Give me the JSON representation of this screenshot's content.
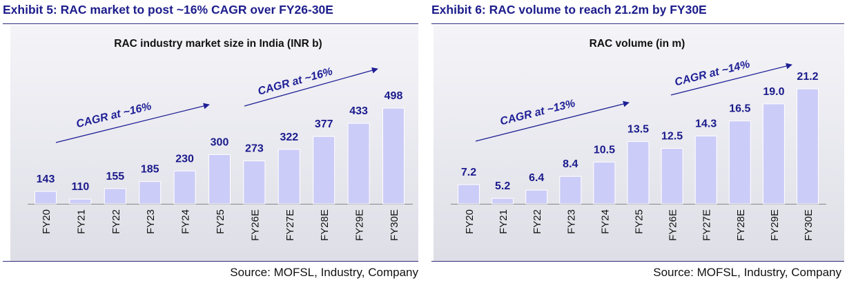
{
  "colors": {
    "bar": "#ccccf8",
    "bar_edge": "#ffffff",
    "value_label": "#1a1a8c",
    "arrow": "#1f1f96",
    "axis": "#888888",
    "title": "#1d1d8c"
  },
  "chart_data": [
    {
      "type": "bar",
      "exhibit_title": "Exhibit 5: RAC market to post ~16% CAGR over FY26-30E",
      "title": "RAC industry market size in India (INR b)",
      "categories": [
        "FY20",
        "FY21",
        "FY22",
        "FY23",
        "FY24",
        "FY25",
        "FY26E",
        "FY27E",
        "FY28E",
        "FY29E",
        "FY30E"
      ],
      "values": [
        143,
        110,
        155,
        185,
        230,
        300,
        273,
        322,
        377,
        433,
        498
      ],
      "value_labels": [
        "143",
        "110",
        "155",
        "185",
        "230",
        "300",
        "273",
        "322",
        "377",
        "433",
        "498"
      ],
      "ylim": [
        90,
        498
      ],
      "annotations": [
        {
          "text": "CAGR at ~16%",
          "from_index": 0,
          "to_index": 5
        },
        {
          "text": "CAGR at ~16%",
          "from_index": 6,
          "to_index": 10
        }
      ],
      "source": "Source: MOFSL, Industry, Company"
    },
    {
      "type": "bar",
      "exhibit_title": "Exhibit 6: RAC volume to reach 21.2m by FY30E",
      "title": "RAC volume (in m)",
      "categories": [
        "FY20",
        "FY21",
        "FY22",
        "FY23",
        "FY24",
        "FY25",
        "FY26E",
        "FY27E",
        "FY28E",
        "FY29E",
        "FY30E"
      ],
      "values": [
        7.2,
        5.2,
        6.4,
        8.4,
        10.5,
        13.5,
        12.5,
        14.3,
        16.5,
        19.0,
        21.2
      ],
      "value_labels": [
        "7.2",
        "5.2",
        "6.4",
        "8.4",
        "10.5",
        "13.5",
        "12.5",
        "14.3",
        "16.5",
        "19.0",
        "21.2"
      ],
      "ylim": [
        4.4,
        21.2
      ],
      "annotations": [
        {
          "text": "CAGR at ~13%",
          "from_index": 0,
          "to_index": 5
        },
        {
          "text": "CAGR at ~14%",
          "from_index": 6,
          "to_index": 10
        }
      ],
      "source": "Source: MOFSL, Industry, Company"
    }
  ]
}
